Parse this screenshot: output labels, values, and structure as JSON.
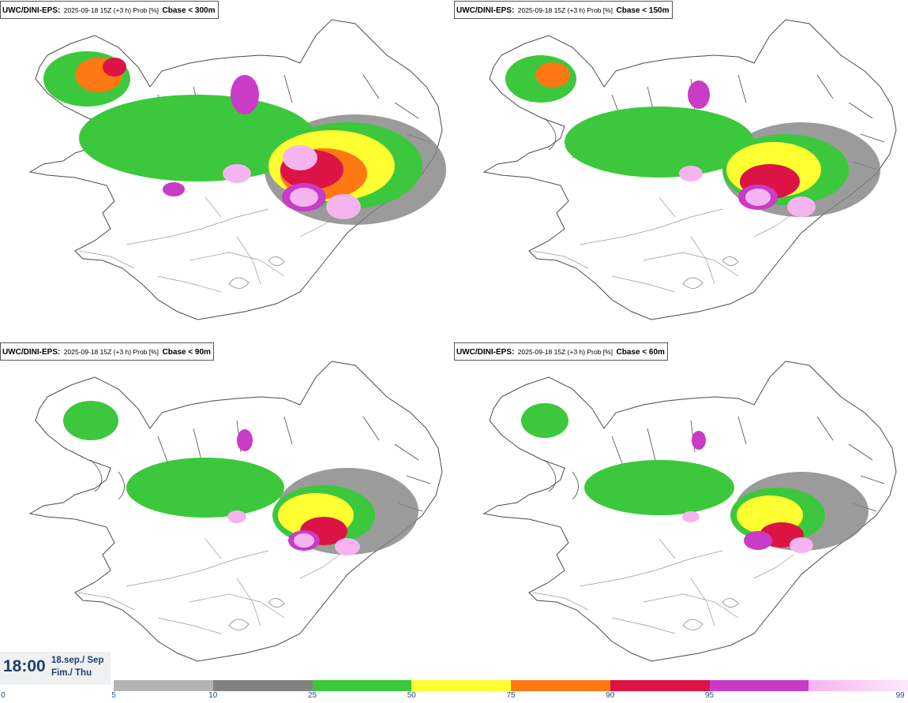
{
  "panels": [
    {
      "model": "UWC/DINI-EPS",
      "run": "2025-09-18 15Z (+3 h) Prob [%]",
      "variable": "Cbase < 300m"
    },
    {
      "model": "UWC/DINI-EPS",
      "run": "2025-09-18 15Z (+3 h) Prob [%]",
      "variable": "Cbase < 150m"
    },
    {
      "model": "UWC/DINI-EPS",
      "run": "2025-09-18 15Z (+3 h) Prob [%]",
      "variable": "Cbase < 90m"
    },
    {
      "model": "UWC/DINI-EPS",
      "run": "2025-09-18 15Z (+3 h) Prob [%]",
      "variable": "Cbase < 60m"
    }
  ],
  "valid_time": {
    "time": "18:00",
    "date_line": "18.sep./ Sep",
    "weekday_line": "Fim./ Thu"
  },
  "legend": {
    "ticks": [
      "0",
      "5",
      "10",
      "25",
      "50",
      "75",
      "90",
      "95",
      "99"
    ],
    "colors": [
      "#b4b4b4",
      "#828282",
      "#3cc83c",
      "#ffff32",
      "#ff7814",
      "#dc1446",
      "#c83cc8",
      "#f5b4f0"
    ]
  },
  "style_colors": {
    "land_outline": "#4a4a4a",
    "frame": "#555555"
  }
}
